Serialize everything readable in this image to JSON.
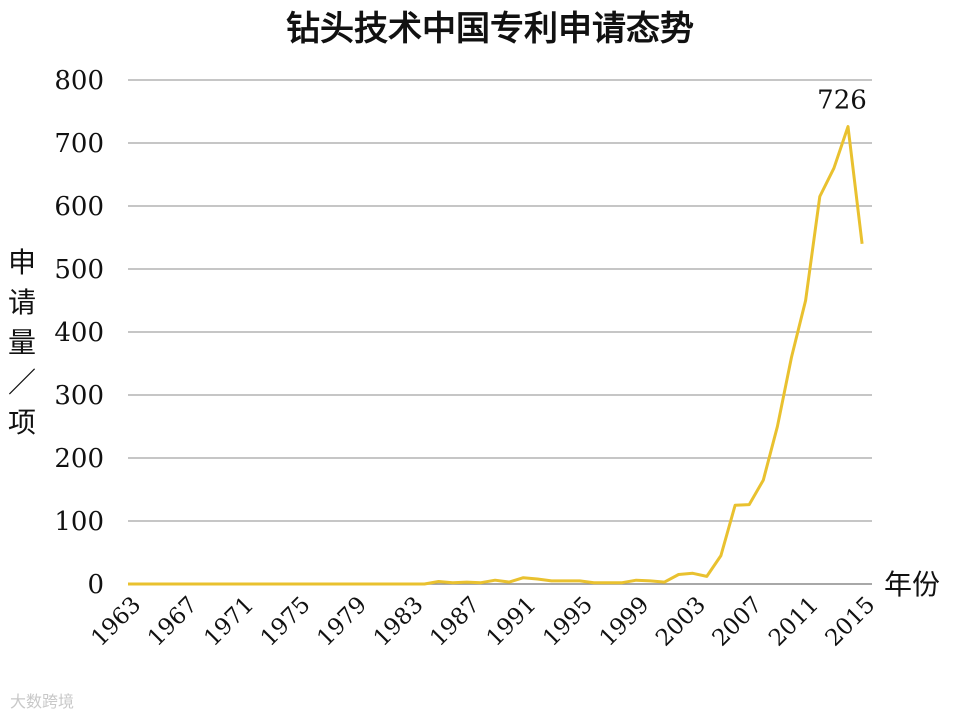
{
  "chart_data": {
    "type": "line",
    "title": "钻头技术中国专利申请态势",
    "xlabel": "年份",
    "ylabel": "申请量/项",
    "ylim": [
      0,
      800
    ],
    "yticks": [
      0,
      100,
      200,
      300,
      400,
      500,
      600,
      700,
      800
    ],
    "xtick_labels": [
      "1963",
      "1967",
      "1971",
      "1975",
      "1979",
      "1983",
      "1987",
      "1991",
      "1995",
      "1999",
      "2003",
      "2007",
      "2011",
      "2015"
    ],
    "grid": "horizontal",
    "line_color": "#E9C12F",
    "series": [
      {
        "x": [
          1963,
          1964,
          1965,
          1966,
          1967,
          1968,
          1969,
          1970,
          1971,
          1972,
          1973,
          1974,
          1975,
          1976,
          1977,
          1978,
          1979,
          1980,
          1981,
          1982,
          1983,
          1984,
          1985,
          1986,
          1987,
          1988,
          1989,
          1990,
          1991,
          1992,
          1993,
          1994,
          1995,
          1996,
          1997,
          1998,
          1999,
          2000,
          2001,
          2002,
          2003,
          2004,
          2005,
          2006,
          2007,
          2008,
          2009,
          2010,
          2011,
          2012,
          2013,
          2014,
          2015
        ],
        "values": [
          0,
          0,
          0,
          0,
          0,
          0,
          0,
          0,
          0,
          0,
          0,
          0,
          0,
          0,
          0,
          0,
          0,
          0,
          0,
          0,
          0,
          0,
          4,
          2,
          3,
          2,
          6,
          3,
          10,
          8,
          5,
          5,
          5,
          2,
          2,
          2,
          6,
          5,
          3,
          15,
          17,
          12,
          45,
          125,
          126,
          165,
          250,
          360,
          450,
          615,
          660,
          726,
          540
        ]
      }
    ],
    "annotations": [
      {
        "x": 2014,
        "y": 726,
        "text": "726"
      }
    ]
  },
  "watermark": "大数跨境"
}
